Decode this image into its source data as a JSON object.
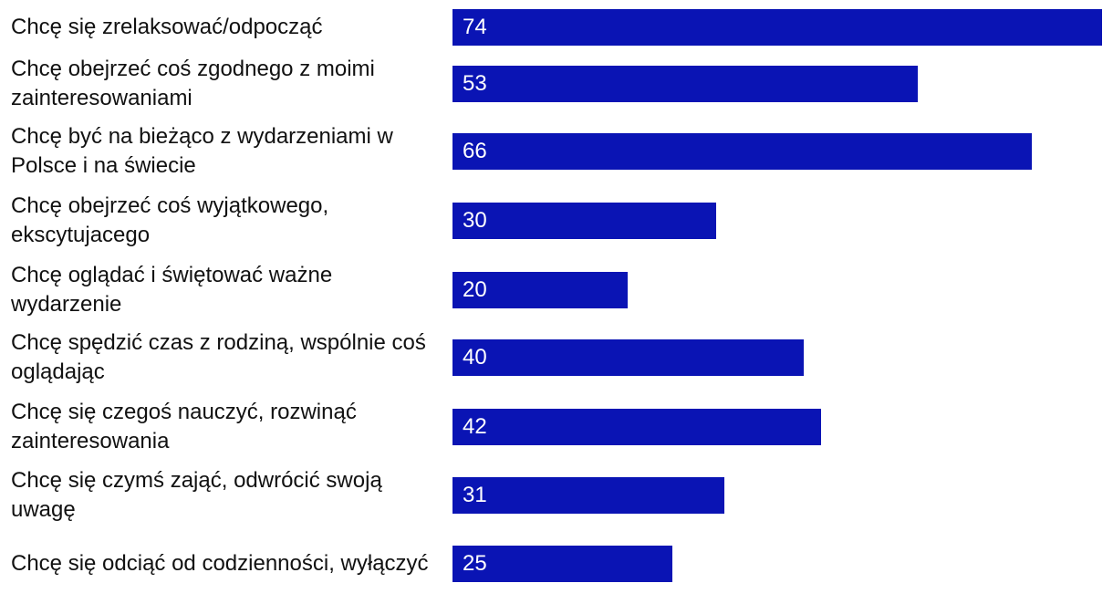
{
  "chart_data": {
    "type": "bar",
    "orientation": "horizontal",
    "categories": [
      "Chcę się zrelaksować/odpocząć",
      "Chcę obejrzeć coś zgodnego z moimi zainteresowaniami",
      "Chcę być na bieżąco z wydarzeniami w Polsce i na świecie",
      "Chcę obejrzeć coś wyjątkowego, ekscytujacego",
      "Chcę oglądać i świętować ważne wydarzenie",
      "Chcę spędzić czas z rodziną, wspólnie coś oglądając",
      "Chcę się czegoś nauczyć, rozwinąć zainteresowania",
      "Chcę się czymś zająć, odwrócić swoją uwagę",
      "Chcę się odciąć od codzienności, wyłączyć"
    ],
    "values": [
      74,
      53,
      66,
      30,
      20,
      40,
      42,
      31,
      25
    ],
    "title": "",
    "xlabel": "",
    "ylabel": "",
    "xlim": [
      0,
      74
    ],
    "grid": false,
    "legend": "none",
    "data_labels": "inside-left"
  },
  "colors": {
    "bar": "#0a14b4",
    "label_text": "#111111",
    "value_text": "#ffffff"
  }
}
